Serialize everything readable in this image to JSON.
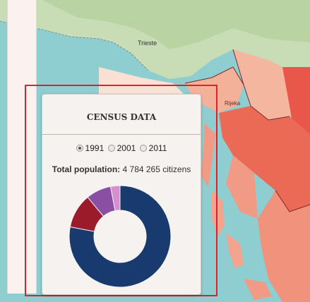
{
  "map": {
    "city_labels": [
      "Trieste",
      "Rijeka"
    ]
  },
  "panel": {
    "title": "CENSUS DATA",
    "years": [
      {
        "label": "1991",
        "selected": true
      },
      {
        "label": "2001",
        "selected": false
      },
      {
        "label": "2011",
        "selected": false
      }
    ],
    "population_label": "Total population:",
    "population_value": "4 784 265 citizens"
  },
  "chart_data": {
    "type": "pie",
    "style": "donut",
    "values": [
      78,
      11,
      8,
      3
    ],
    "colors": [
      "#183a6e",
      "#9b1b2a",
      "#8a4fa3",
      "#d58fd0"
    ]
  }
}
